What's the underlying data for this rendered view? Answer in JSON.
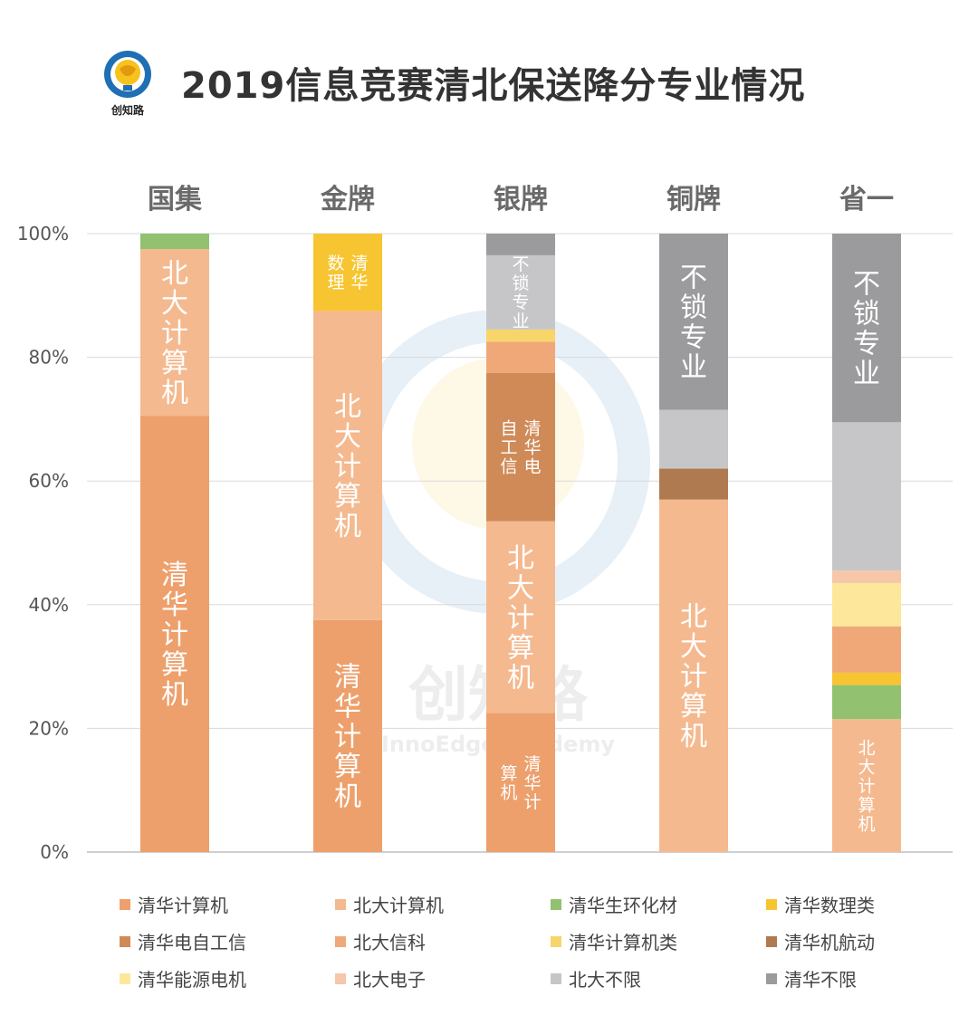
{
  "header": {
    "title": "2019信息竞赛清北保送降分专业情况",
    "logo_text": "创知路"
  },
  "chart_data": {
    "type": "bar",
    "stacked": true,
    "title": "2019信息竞赛清北保送降分专业情况",
    "categories": [
      "国集",
      "金牌",
      "银牌",
      "铜牌",
      "省一"
    ],
    "ylim": [
      0,
      100
    ],
    "yticks": [
      "0%",
      "20%",
      "40%",
      "60%",
      "80%",
      "100%"
    ],
    "colors": {
      "清华计算机": "#eda06c",
      "北大计算机": "#f4b98f",
      "清华生环化材": "#92c170",
      "清华数理类": "#f7c531",
      "清华电自工信": "#d08a58",
      "北大信科": "#f0a878",
      "清华计算机类": "#f8d56a",
      "清华机航动": "#b07a50",
      "清华能源电机": "#fde79a",
      "北大电子": "#f6c7a8",
      "北大不限": "#c6c6c8",
      "清华不限": "#9b9b9d"
    },
    "series": [
      {
        "name": "清华计算机",
        "values": [
          70.5,
          37.5,
          22.5,
          0,
          0
        ]
      },
      {
        "name": "北大计算机",
        "values": [
          27,
          50,
          31,
          57,
          21.5
        ]
      },
      {
        "name": "清华生环化材",
        "values": [
          2.5,
          0,
          0,
          0,
          5.5
        ]
      },
      {
        "name": "清华数理类",
        "values": [
          0,
          12.5,
          0,
          0,
          2
        ]
      },
      {
        "name": "清华电自工信",
        "values": [
          0,
          0,
          24,
          0,
          0
        ]
      },
      {
        "name": "北大信科",
        "values": [
          0,
          0,
          5,
          0,
          7.5
        ]
      },
      {
        "name": "清华计算机类",
        "values": [
          0,
          0,
          2,
          0,
          0
        ]
      },
      {
        "name": "清华机航动",
        "values": [
          0,
          0,
          0,
          5,
          0
        ]
      },
      {
        "name": "清华能源电机",
        "values": [
          0,
          0,
          0,
          0,
          7
        ]
      },
      {
        "name": "北大电子",
        "values": [
          0,
          0,
          0,
          0,
          2
        ]
      },
      {
        "name": "北大不限",
        "values": [
          0,
          0,
          12,
          9.5,
          24
        ]
      },
      {
        "name": "清华不限",
        "values": [
          0,
          0,
          3.5,
          28.5,
          30.5
        ]
      }
    ],
    "segment_labels": [
      {
        "text": "清华计算机",
        "bar": 0,
        "series": "清华计算机",
        "size": "large"
      },
      {
        "text": "北大计算机",
        "bar": 0,
        "series": "北大计算机",
        "size": "large"
      },
      {
        "text": "清华计算机",
        "bar": 1,
        "series": "清华计算机",
        "size": "large"
      },
      {
        "text": "北大计算机",
        "bar": 1,
        "series": "北大计算机",
        "size": "large"
      },
      {
        "text": "清华数理",
        "bar": 1,
        "series": "清华数理类",
        "size": "small",
        "columns": 2
      },
      {
        "text": "清华计算机",
        "bar": 2,
        "series": "清华计算机",
        "size": "small",
        "columns": 2
      },
      {
        "text": "北大计算机",
        "bar": 2,
        "series": "北大计算机",
        "size": "large"
      },
      {
        "text": "清华电自工信",
        "bar": 2,
        "series": "清华电自工信",
        "size": "small",
        "columns": 2
      },
      {
        "text": "不锁专业",
        "bar": 2,
        "series": "北大不限",
        "size": "small"
      },
      {
        "text": "北大计算机",
        "bar": 3,
        "series": "北大计算机",
        "size": "large"
      },
      {
        "text": "不锁专业",
        "bar": 3,
        "series": "清华不限",
        "size": "large"
      },
      {
        "text": "北大计算机",
        "bar": 4,
        "series": "北大计算机",
        "size": "small"
      },
      {
        "text": "不锁专业",
        "bar": 4,
        "series": "清华不限",
        "size": "large"
      }
    ],
    "legend": [
      "清华计算机",
      "北大计算机",
      "清华生环化材",
      "清华数理类",
      "清华电自工信",
      "北大信科",
      "清华计算机类",
      "清华机航动",
      "清华能源电机",
      "北大电子",
      "北大不限",
      "清华不限"
    ],
    "watermark": {
      "text": "创知路",
      "subtext": "InnoEdge Academy"
    }
  }
}
